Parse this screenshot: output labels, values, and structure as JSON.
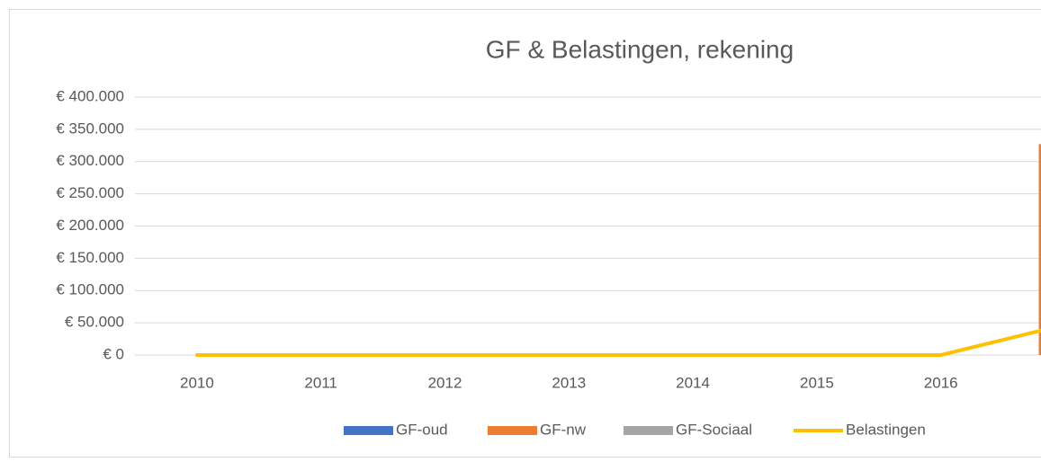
{
  "chart_data": {
    "type": "combo",
    "title": "GF & Belastingen, rekening",
    "categories": [
      "2010",
      "2011",
      "2012",
      "2013",
      "2014",
      "2015",
      "2016",
      null
    ],
    "series": [
      {
        "name": "GF-oud",
        "color": "#4472c4",
        "chart_type": "bar",
        "values": [
          0,
          0,
          0,
          0,
          0,
          0,
          0,
          0
        ]
      },
      {
        "name": "GF-nw",
        "color": "#ed7d31",
        "chart_type": "bar",
        "values": [
          0,
          0,
          0,
          0,
          0,
          0,
          0,
          327000
        ]
      },
      {
        "name": "GF-Sociaal",
        "color": "#a5a5a5",
        "chart_type": "bar",
        "values": [
          0,
          0,
          0,
          0,
          0,
          0,
          0,
          0
        ]
      },
      {
        "name": "Belastingen",
        "color": "#ffc000",
        "chart_type": "line",
        "values": [
          0,
          0,
          0,
          0,
          0,
          0,
          0,
          47000
        ]
      }
    ],
    "ylim": [
      0,
      400000
    ],
    "yticks": [
      {
        "value": 0,
        "label": "€ 0"
      },
      {
        "value": 50000,
        "label": "€ 50.000"
      },
      {
        "value": 100000,
        "label": "€ 100.000"
      },
      {
        "value": 150000,
        "label": "€ 150.000"
      },
      {
        "value": 200000,
        "label": "€ 200.000"
      },
      {
        "value": 250000,
        "label": "€ 250.000"
      },
      {
        "value": 300000,
        "label": "€ 300.000"
      },
      {
        "value": 350000,
        "label": "€ 350.000"
      },
      {
        "value": 400000,
        "label": "€ 400.000"
      }
    ],
    "grid": true,
    "stacked": true,
    "legend": "bottom"
  }
}
